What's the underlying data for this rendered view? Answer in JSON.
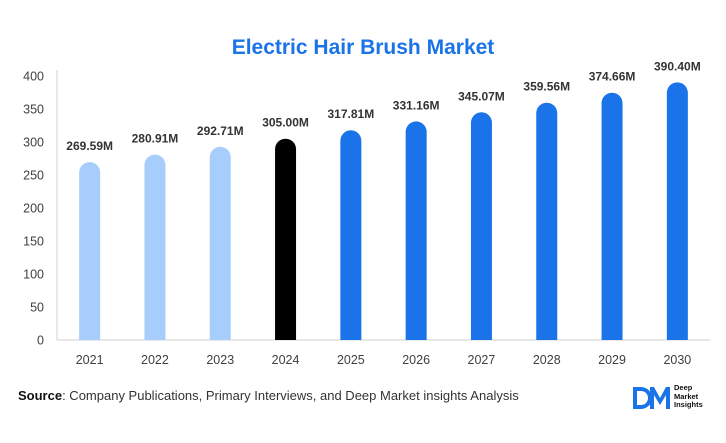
{
  "chart_data": {
    "type": "bar",
    "title": "Electric Hair Brush Market",
    "xlabel": "",
    "ylabel": "",
    "categories": [
      "2021",
      "2022",
      "2023",
      "2024",
      "2025",
      "2026",
      "2027",
      "2028",
      "2029",
      "2030"
    ],
    "values": [
      269.59,
      280.91,
      292.71,
      305.0,
      317.81,
      331.16,
      345.07,
      359.56,
      374.66,
      390.4
    ],
    "data_labels": [
      "269.59M",
      "280.91M",
      "292.71M",
      "305.00M",
      "317.81M",
      "331.16M",
      "345.07M",
      "359.56M",
      "374.66M",
      "390.40M"
    ],
    "ylim": [
      0,
      400
    ],
    "yticks": [
      0,
      50,
      100,
      150,
      200,
      250,
      300,
      350,
      400
    ],
    "grid": false,
    "bar_colors": [
      "#a6cdfb",
      "#a6cdfb",
      "#a6cdfb",
      "#000000",
      "#1a73e8",
      "#1a73e8",
      "#1a73e8",
      "#1a73e8",
      "#1a73e8",
      "#1a73e8"
    ]
  },
  "source": {
    "label": "Source",
    "text": ": Company Publications, Primary Interviews, and Deep Market insights Analysis"
  },
  "logo": {
    "line1": "Deep",
    "line2": "Market",
    "line3": "Insights",
    "accent_color": "#1a73e8"
  }
}
